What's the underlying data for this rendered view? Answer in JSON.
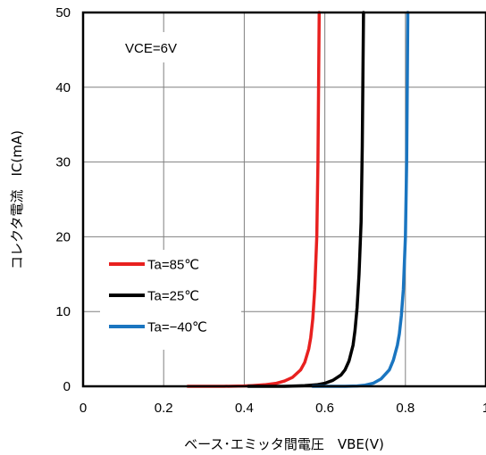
{
  "chart_data": {
    "type": "line",
    "title": "",
    "xlabel": "ベース･エミッタ間電圧　VBE(V)",
    "ylabel": "コレクタ電流　IC(mA)",
    "xlim": [
      0,
      1
    ],
    "ylim": [
      0,
      50
    ],
    "xticks": [
      0,
      0.2,
      0.4,
      0.6,
      0.8,
      1
    ],
    "xtick_labels": [
      "0",
      "0.2",
      "0.4",
      "0.6",
      "0.8",
      "1"
    ],
    "yticks": [
      0,
      10,
      20,
      30,
      40,
      50
    ],
    "ytick_labels": [
      "0",
      "10",
      "20",
      "30",
      "40",
      "50"
    ],
    "grid": true,
    "legend_position": "lower-left",
    "annotation": "VCE=6V",
    "series": [
      {
        "name": "Ta=85℃",
        "color": "#e8201f",
        "x": [
          0.26,
          0.3,
          0.35,
          0.4,
          0.42,
          0.45,
          0.48,
          0.5,
          0.52,
          0.54,
          0.55,
          0.56,
          0.565,
          0.57,
          0.575,
          0.58,
          0.583,
          0.586
        ],
        "y": [
          0,
          0,
          0,
          0.05,
          0.1,
          0.2,
          0.4,
          0.7,
          1.2,
          2.2,
          3.2,
          5,
          6.5,
          9,
          13,
          20,
          30,
          50
        ]
      },
      {
        "name": "Ta=25℃",
        "color": "#000000",
        "x": [
          0.41,
          0.45,
          0.5,
          0.52,
          0.55,
          0.58,
          0.6,
          0.62,
          0.64,
          0.65,
          0.66,
          0.67,
          0.675,
          0.68,
          0.685,
          0.69,
          0.693,
          0.696
        ],
        "y": [
          0,
          0,
          0,
          0.02,
          0.08,
          0.2,
          0.4,
          0.8,
          1.5,
          2.2,
          3.4,
          5.5,
          7.5,
          10.5,
          15,
          22,
          32,
          50
        ]
      },
      {
        "name": "Ta=−40℃",
        "color": "#1a75c0",
        "x": [
          0.57,
          0.6,
          0.65,
          0.68,
          0.7,
          0.72,
          0.74,
          0.76,
          0.77,
          0.78,
          0.785,
          0.79,
          0.795,
          0.8,
          0.803,
          0.806
        ],
        "y": [
          0,
          0,
          0,
          0.05,
          0.15,
          0.4,
          1,
          2.2,
          3.5,
          5.5,
          7,
          9.5,
          13,
          20,
          30,
          50
        ]
      }
    ]
  }
}
